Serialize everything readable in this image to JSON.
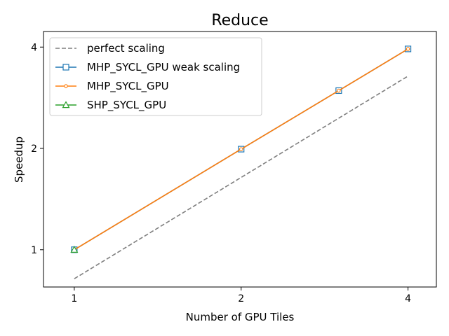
{
  "chart_data": {
    "type": "line",
    "title": "Reduce",
    "xlabel": "Number of GPU Tiles",
    "ylabel": "Speedup",
    "xscale": "log2",
    "yscale": "log2",
    "xlim": [
      0.88,
      4.5
    ],
    "ylim": [
      0.775,
      4.45
    ],
    "xticks": [
      1,
      2,
      4
    ],
    "xtick_labels": [
      "1",
      "2",
      "4"
    ],
    "yticks": [
      1,
      2,
      4
    ],
    "ytick_labels": [
      "1",
      "2",
      "4"
    ],
    "grid": false,
    "legend": "top-left",
    "series": [
      {
        "name": "perfect scaling",
        "style": "dashed",
        "marker": "none",
        "color": "#7f7f7f",
        "x": [
          1,
          2,
          4
        ],
        "y": [
          0.82,
          1.64,
          3.28
        ]
      },
      {
        "name": "MHP_SYCL_GPU weak scaling",
        "style": "solid",
        "marker": "square",
        "color": "#1f77b4",
        "x": [
          1,
          2,
          3,
          4
        ],
        "y": [
          1.0,
          1.99,
          2.97,
          3.95
        ]
      },
      {
        "name": "MHP_SYCL_GPU",
        "style": "solid",
        "marker": "small-circle",
        "color": "#ff7f0e",
        "x": [
          1,
          2,
          3,
          4
        ],
        "y": [
          1.0,
          1.99,
          2.97,
          3.95
        ]
      },
      {
        "name": "SHP_SYCL_GPU",
        "style": "solid",
        "marker": "triangle",
        "color": "#2ca02c",
        "x": [
          1
        ],
        "y": [
          1.0
        ]
      }
    ]
  }
}
